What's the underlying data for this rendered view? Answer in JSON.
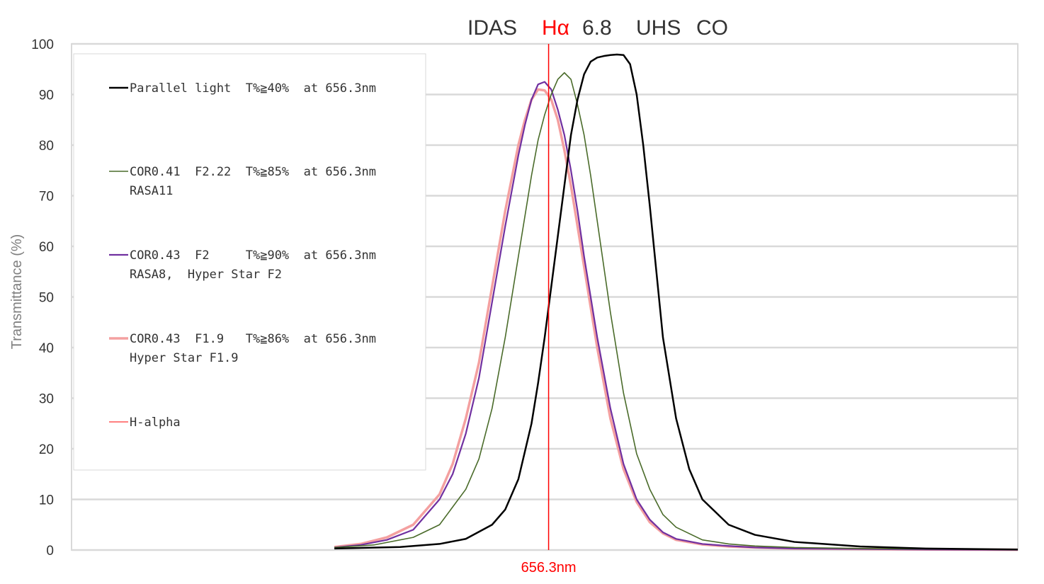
{
  "chart_data": {
    "type": "line",
    "title": {
      "part1": "IDAS",
      "part2_red": "Hα",
      "part3": "6.8",
      "part4": "UHS",
      "part5": "CO"
    },
    "ylabel": "Transmittance (%)",
    "xlabel": "",
    "ylim": [
      0,
      100
    ],
    "yticks": [
      0,
      10,
      20,
      30,
      40,
      50,
      60,
      70,
      80,
      90,
      100
    ],
    "xlim": [
      620,
      692
    ],
    "grid": true,
    "legend_position": "top-left",
    "marker": {
      "x": 656.3,
      "label": "656.3nm",
      "color": "#ff0000",
      "name": "H-alpha"
    },
    "series": [
      {
        "name": "Parallel light  T%≧40%  at 656.3nm",
        "name2": "",
        "color": "#000000",
        "width": 2.5,
        "x": [
          640,
          645,
          648,
          650,
          652,
          653,
          654,
          655,
          655.5,
          656,
          656.5,
          657,
          657.5,
          658,
          658.5,
          659,
          659.5,
          660,
          660.5,
          661,
          661.5,
          662,
          662.5,
          663,
          663.5,
          664,
          664.5,
          665,
          666,
          667,
          668,
          670,
          672,
          675,
          680,
          685,
          692
        ],
        "y": [
          0.3,
          0.6,
          1.2,
          2.2,
          5,
          8,
          14,
          25,
          33,
          42,
          52,
          62,
          72,
          82,
          89,
          94,
          96.5,
          97.3,
          97.6,
          97.8,
          97.9,
          97.8,
          96,
          90,
          80,
          68,
          55,
          42,
          26,
          16,
          10,
          5,
          3,
          1.6,
          0.7,
          0.3,
          0.1
        ]
      },
      {
        "name": "COR0.41  F2.22  T%≧85%  at 656.3nm",
        "name2": "RASA11",
        "color": "#4a6b2a",
        "width": 1.6,
        "x": [
          640,
          643,
          646,
          648,
          650,
          651,
          652,
          653,
          654,
          655,
          655.5,
          656,
          656.5,
          657,
          657.5,
          658,
          658.5,
          659,
          659.5,
          660,
          661,
          662,
          663,
          664,
          665,
          666,
          668,
          670,
          672,
          675,
          680,
          685,
          692
        ],
        "y": [
          0.5,
          1,
          2.5,
          5,
          12,
          18,
          28,
          42,
          58,
          74,
          81,
          86,
          90,
          93,
          94.3,
          93,
          88,
          82,
          74,
          65,
          47,
          31,
          19,
          12,
          7,
          4.5,
          2,
          1.2,
          0.8,
          0.5,
          0.3,
          0.2,
          0.1
        ]
      },
      {
        "name": "COR0.43  F2     T%≧90%  at 656.3nm",
        "name2": "RASA8,  Hyper Star F2",
        "color": "#7030a0",
        "width": 2.2,
        "x": [
          640,
          642,
          644,
          646,
          648,
          649,
          650,
          651,
          652,
          653,
          654,
          654.5,
          655,
          655.5,
          656,
          656.5,
          657,
          657.5,
          658,
          658.5,
          659,
          660,
          661,
          662,
          663,
          664,
          665,
          666,
          668,
          670,
          672,
          675,
          680,
          685,
          692
        ],
        "y": [
          0.5,
          1,
          2,
          4,
          10,
          15,
          23,
          34,
          49,
          64,
          78,
          84,
          89,
          92,
          92.5,
          91,
          87,
          82,
          75,
          67,
          58,
          42,
          28,
          17,
          10,
          6,
          3.5,
          2.2,
          1.2,
          0.8,
          0.5,
          0.3,
          0.2,
          0.1,
          0.05
        ]
      },
      {
        "name": "COR0.43  F1.9   T%≧86%  at 656.3nm",
        "name2": "Hyper Star F1.9",
        "color": "#f4a0a0",
        "width": 3.5,
        "x": [
          640,
          642,
          644,
          646,
          648,
          649,
          650,
          651,
          652,
          653,
          654,
          654.5,
          655,
          655.5,
          656,
          656.5,
          657,
          657.5,
          658,
          658.5,
          659,
          660,
          661,
          662,
          663,
          664,
          665,
          666,
          668,
          670,
          672,
          675,
          680,
          685,
          692
        ],
        "y": [
          0.6,
          1.2,
          2.5,
          5,
          11,
          17,
          26,
          37,
          52,
          67,
          80,
          85,
          89,
          91,
          90.8,
          89,
          85,
          79,
          72,
          64,
          56,
          40,
          26,
          16,
          9.5,
          5.5,
          3.3,
          2,
          1.1,
          0.7,
          0.5,
          0.3,
          0.2,
          0.1,
          0.05
        ]
      }
    ]
  }
}
